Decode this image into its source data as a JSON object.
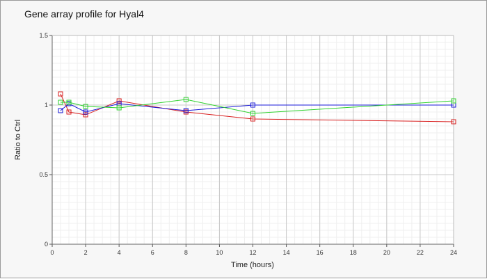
{
  "chart_data": {
    "type": "line",
    "title": "Gene array profile for Hyal4",
    "xlabel": "Time (hours)",
    "ylabel": "Ratio to Ctrl",
    "xlim": [
      0,
      24
    ],
    "ylim": [
      0,
      1.5
    ],
    "xticks": [
      "0",
      "2",
      "4",
      "6",
      "8",
      "10",
      "12",
      "14",
      "16",
      "18",
      "20",
      "22",
      "24"
    ],
    "yticks": [
      "0",
      "0.5",
      "1",
      "1.5"
    ],
    "grid": true,
    "legend": "none",
    "marker": "open-square",
    "series": [
      {
        "color": "#d81e1e",
        "points": [
          [
            0.5,
            1.08
          ],
          [
            1,
            0.95
          ],
          [
            2,
            0.93
          ],
          [
            4,
            1.03
          ],
          [
            8,
            0.95
          ],
          [
            12,
            0.9
          ],
          [
            24,
            0.88
          ]
        ]
      },
      {
        "color": "#1a1ad8",
        "points": [
          [
            0.5,
            0.96
          ],
          [
            1,
            1.01
          ],
          [
            2,
            0.95
          ],
          [
            4,
            1.01
          ],
          [
            8,
            0.96
          ],
          [
            12,
            1.0
          ],
          [
            24,
            1.0
          ]
        ]
      },
      {
        "color": "#2ed12e",
        "points": [
          [
            0.5,
            1.02
          ],
          [
            1,
            1.02
          ],
          [
            2,
            0.99
          ],
          [
            4,
            0.98
          ],
          [
            8,
            1.04
          ],
          [
            12,
            0.94
          ],
          [
            24,
            1.03
          ]
        ]
      }
    ]
  }
}
